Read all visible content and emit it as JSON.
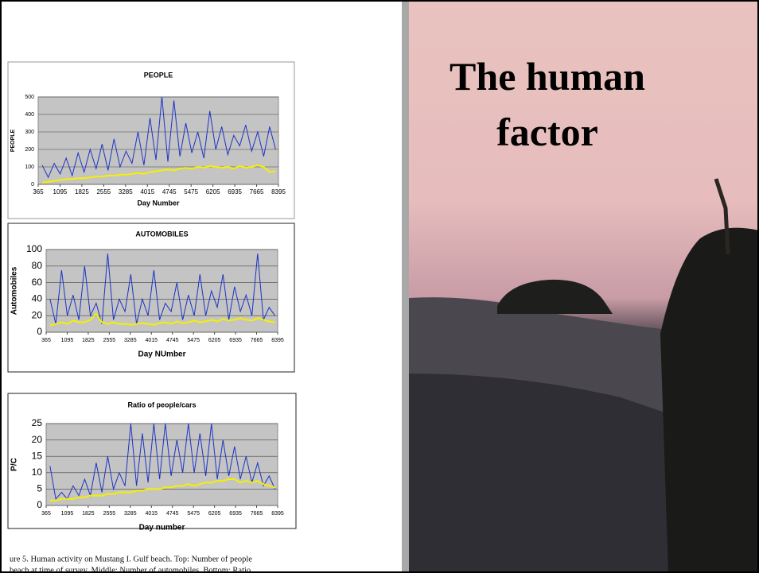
{
  "slide": {
    "title": "The human factor",
    "caption": [
      "ure 5.  Human activity on Mustang I. Gulf beach.  Top: Number of people",
      "beach at time of survey.  Middle: Number of automobiles.  Bottom: Ratio"
    ]
  },
  "chart_data": [
    {
      "type": "line",
      "title": "PEOPLE",
      "ylabel": "PEOPLE",
      "xlabel": "Day Number",
      "x": [
        500,
        700,
        900,
        1100,
        1300,
        1500,
        1700,
        1900,
        2100,
        2300,
        2500,
        2700,
        2900,
        3100,
        3300,
        3500,
        3700,
        3900,
        4100,
        4300,
        4500,
        4700,
        4900,
        5100,
        5300,
        5500,
        5700,
        5900,
        6100,
        6300,
        6500,
        6700,
        6900,
        7100,
        7300,
        7500,
        7700,
        7900,
        8100,
        8300
      ],
      "series": [
        {
          "color": "#1a33c4",
          "values": [
            110,
            40,
            120,
            60,
            150,
            50,
            180,
            70,
            200,
            90,
            230,
            80,
            260,
            100,
            190,
            120,
            300,
            110,
            380,
            140,
            500,
            130,
            480,
            160,
            350,
            180,
            300,
            150,
            420,
            200,
            330,
            170,
            280,
            220,
            340,
            190,
            300,
            160,
            330,
            200
          ]
        },
        {
          "color": "#f5f000",
          "values": [
            10,
            15,
            20,
            25,
            30,
            30,
            35,
            35,
            40,
            45,
            45,
            50,
            50,
            55,
            55,
            60,
            65,
            60,
            70,
            75,
            80,
            85,
            80,
            90,
            95,
            90,
            100,
            95,
            105,
            100,
            95,
            100,
            90,
            105,
            95,
            100,
            110,
            100,
            70,
            75
          ]
        }
      ],
      "xlim": [
        365,
        8395
      ],
      "xticks": [
        365,
        1095,
        1825,
        2555,
        3285,
        4015,
        4745,
        5475,
        6205,
        6935,
        7665,
        8395
      ],
      "ylim": [
        0,
        500
      ],
      "yticks": [
        0,
        100,
        200,
        300,
        400,
        500
      ],
      "grid": true
    },
    {
      "type": "line",
      "title": "AUTOMOBILES",
      "ylabel": "Automobiles",
      "xlabel": "Day NUmber",
      "x": [
        500,
        700,
        900,
        1100,
        1300,
        1500,
        1700,
        1900,
        2100,
        2300,
        2500,
        2700,
        2900,
        3100,
        3300,
        3500,
        3700,
        3900,
        4100,
        4300,
        4500,
        4700,
        4900,
        5100,
        5300,
        5500,
        5700,
        5900,
        6100,
        6300,
        6500,
        6700,
        6900,
        7100,
        7300,
        7500,
        7700,
        7900,
        8100,
        8300
      ],
      "series": [
        {
          "color": "#1a33c4",
          "values": [
            40,
            10,
            75,
            20,
            45,
            15,
            80,
            20,
            35,
            10,
            95,
            15,
            40,
            25,
            70,
            10,
            40,
            20,
            75,
            15,
            35,
            25,
            60,
            15,
            45,
            20,
            70,
            20,
            50,
            30,
            70,
            15,
            55,
            25,
            45,
            20,
            95,
            15,
            30,
            20
          ]
        },
        {
          "color": "#f5f000",
          "values": [
            8,
            10,
            12,
            10,
            14,
            12,
            12,
            15,
            22,
            12,
            10,
            12,
            10,
            10,
            9,
            10,
            11,
            10,
            9,
            11,
            12,
            10,
            13,
            11,
            12,
            14,
            12,
            13,
            15,
            13,
            16,
            14,
            15,
            17,
            15,
            14,
            17,
            15,
            13,
            12
          ]
        }
      ],
      "xlim": [
        365,
        8395
      ],
      "xticks": [
        365,
        1095,
        1825,
        2555,
        3285,
        4015,
        4745,
        5475,
        6205,
        6935,
        7665,
        8395
      ],
      "ylim": [
        0,
        100
      ],
      "yticks": [
        0,
        20,
        40,
        60,
        80,
        100
      ],
      "grid": true
    },
    {
      "type": "line",
      "title": "Ratio of people/cars",
      "ylabel": "P/C",
      "xlabel": "Day number",
      "x": [
        500,
        700,
        900,
        1100,
        1300,
        1500,
        1700,
        1900,
        2100,
        2300,
        2500,
        2700,
        2900,
        3100,
        3300,
        3500,
        3700,
        3900,
        4100,
        4300,
        4500,
        4700,
        4900,
        5100,
        5300,
        5500,
        5700,
        5900,
        6100,
        6300,
        6500,
        6700,
        6900,
        7100,
        7300,
        7500,
        7700,
        7900,
        8100,
        8300
      ],
      "series": [
        {
          "color": "#1a33c4",
          "values": [
            12,
            2,
            4,
            2,
            6,
            3,
            8,
            3,
            13,
            4,
            15,
            5,
            10,
            6,
            25,
            6,
            22,
            7,
            25,
            8,
            25,
            9,
            20,
            10,
            25,
            10,
            22,
            9,
            25,
            8,
            20,
            9,
            18,
            8,
            15,
            7,
            13,
            6,
            9,
            5
          ]
        },
        {
          "color": "#f5f000",
          "values": [
            1.5,
            1.5,
            2,
            2,
            2,
            2.5,
            2.5,
            3,
            3,
            3,
            3.5,
            3.5,
            4,
            4,
            4,
            4.5,
            4.5,
            5,
            5,
            5,
            5.5,
            5.5,
            6,
            6,
            6.5,
            6,
            6.5,
            7,
            7,
            7.5,
            7.5,
            8,
            8,
            7,
            7.5,
            7,
            7.5,
            6.5,
            6,
            5.5
          ]
        }
      ],
      "xlim": [
        365,
        8395
      ],
      "xticks": [
        365,
        1095,
        1825,
        2555,
        3285,
        4015,
        4745,
        5475,
        6205,
        6935,
        7665,
        8395
      ],
      "ylim": [
        0,
        25
      ],
      "yticks": [
        0,
        5,
        10,
        15,
        20,
        25
      ],
      "grid": true
    }
  ]
}
